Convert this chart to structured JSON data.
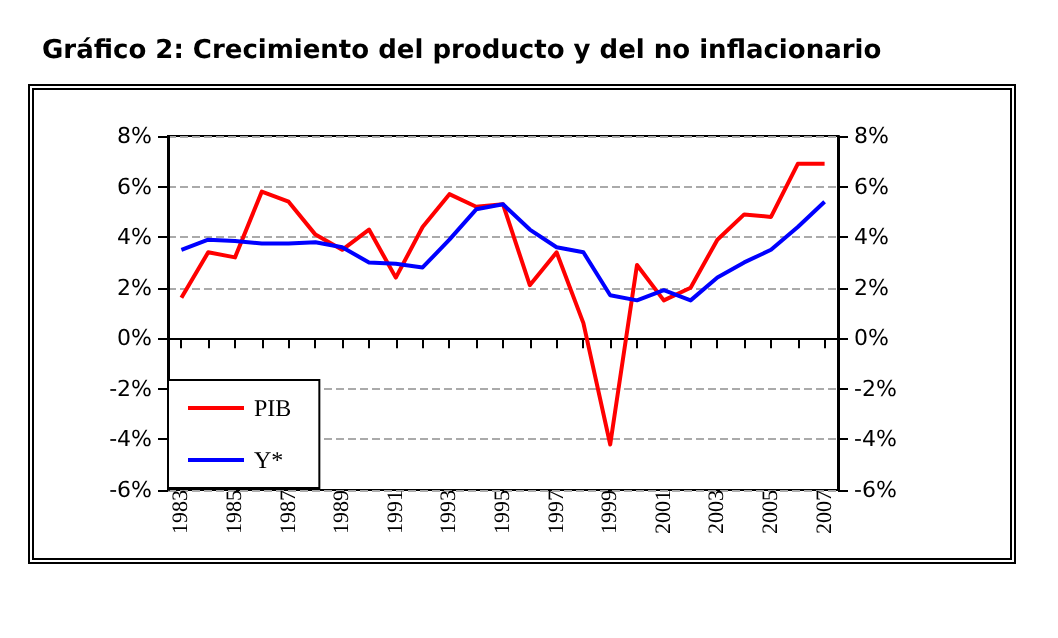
{
  "chart_data": {
    "type": "line",
    "title": "Gráfico 2: Crecimiento del producto y del no inflacionario",
    "categories": [
      "1983",
      null,
      "1985",
      null,
      "1987",
      null,
      "1989",
      null,
      "1991",
      null,
      "1993",
      null,
      "1995",
      null,
      "1997",
      null,
      "1999",
      null,
      "2001",
      null,
      "2003",
      null,
      "2005",
      null,
      "2007"
    ],
    "series": [
      {
        "name": "PIB",
        "color": "#ff0000",
        "values": [
          1.6,
          3.4,
          3.2,
          5.8,
          5.4,
          4.1,
          3.5,
          4.3,
          2.4,
          4.4,
          5.7,
          5.2,
          5.3,
          2.1,
          3.4,
          0.6,
          -4.2,
          2.9,
          1.5,
          2.0,
          3.9,
          4.9,
          4.8,
          6.9,
          6.9
        ]
      },
      {
        "name": "Y*",
        "color": "#0000ff",
        "values": [
          3.5,
          3.9,
          3.85,
          3.75,
          3.75,
          3.8,
          3.6,
          3.0,
          2.95,
          2.8,
          3.9,
          5.1,
          5.3,
          4.3,
          3.6,
          3.4,
          1.7,
          1.5,
          1.9,
          1.5,
          2.4,
          3.0,
          3.5,
          4.4,
          5.4
        ]
      }
    ],
    "ylim": [
      -6,
      8
    ],
    "yticks": [
      {
        "value": -6,
        "label": "-6%"
      },
      {
        "value": -4,
        "label": "-4%"
      },
      {
        "value": -2,
        "label": "-2%"
      },
      {
        "value": 0,
        "label": "0%"
      },
      {
        "value": 2,
        "label": "2%"
      },
      {
        "value": 4,
        "label": "4%"
      },
      {
        "value": 6,
        "label": "6%"
      },
      {
        "value": 8,
        "label": "8%"
      }
    ],
    "y2lim": [
      -6,
      8
    ],
    "y2ticks": [
      {
        "value": -6,
        "label": "-6%"
      },
      {
        "value": -4,
        "label": "-4%"
      },
      {
        "value": -2,
        "label": "-2%"
      },
      {
        "value": 0,
        "label": "0%"
      },
      {
        "value": 2,
        "label": "2%"
      },
      {
        "value": 4,
        "label": "4%"
      },
      {
        "value": 6,
        "label": "6%"
      },
      {
        "value": 8,
        "label": "8%"
      }
    ],
    "grid": "y",
    "legend": "bottom left",
    "marker": "none",
    "line_style": "solid"
  }
}
